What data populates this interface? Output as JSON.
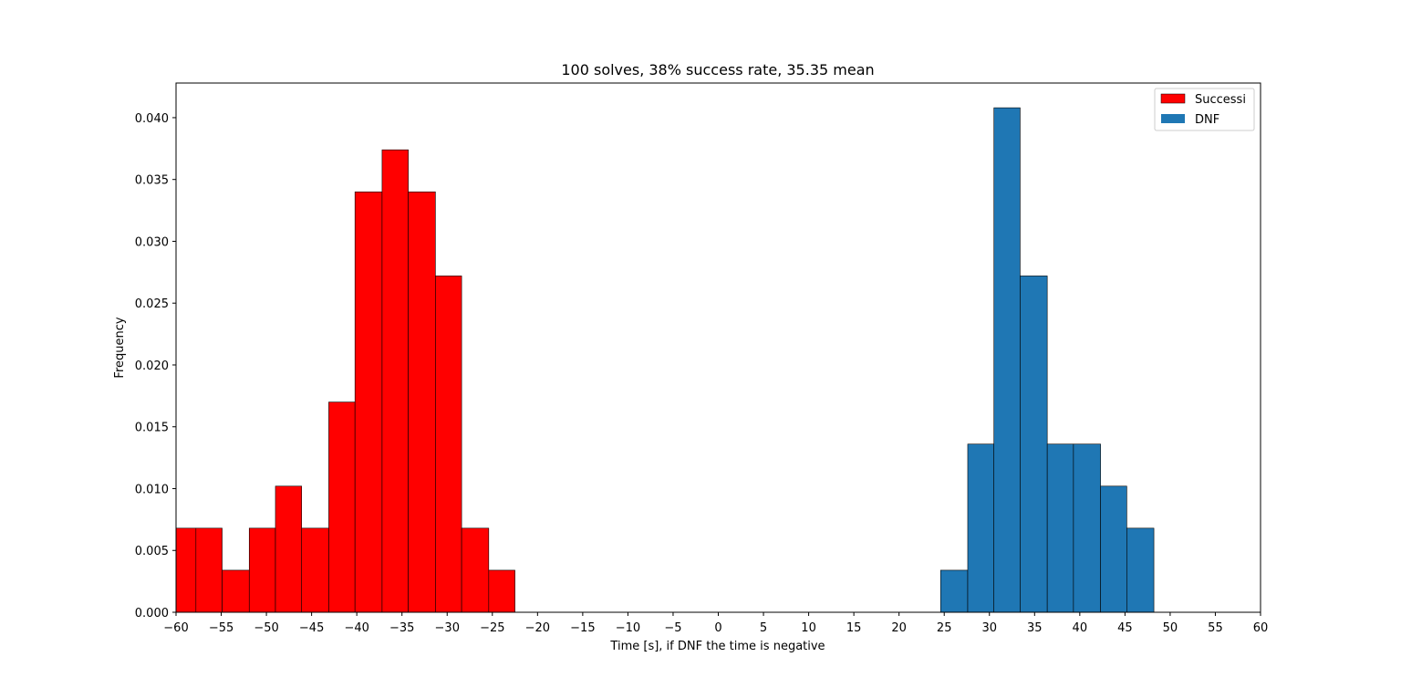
{
  "chart_data": {
    "type": "bar",
    "title": "100 solves, 38% success rate, 35.35 mean",
    "xlabel": "Time [s], if DNF the time is negative",
    "ylabel": "Frequency",
    "xlim": [
      -60,
      60
    ],
    "ylim": [
      0,
      0.0428
    ],
    "x_ticks": [
      -60,
      -55,
      -50,
      -45,
      -40,
      -35,
      -30,
      -25,
      -20,
      -15,
      -10,
      -5,
      0,
      5,
      10,
      15,
      20,
      25,
      30,
      35,
      40,
      45,
      50,
      55,
      60
    ],
    "y_ticks": [
      0.0,
      0.005,
      0.01,
      0.015,
      0.02,
      0.025,
      0.03,
      0.035,
      0.04
    ],
    "y_tick_labels": [
      "0.000",
      "0.005",
      "0.010",
      "0.015",
      "0.020",
      "0.025",
      "0.030",
      "0.035",
      "0.040"
    ],
    "grid": false,
    "legend_position": "top-right",
    "series": [
      {
        "name": "Successi",
        "color": "#ff0000",
        "bins": [
          {
            "x0": -60.0,
            "x1": -57.8,
            "value": 0.0068
          },
          {
            "x0": -57.8,
            "x1": -54.9,
            "value": 0.0068
          },
          {
            "x0": -54.9,
            "x1": -51.9,
            "value": 0.0034
          },
          {
            "x0": -51.9,
            "x1": -49.0,
            "value": 0.0068
          },
          {
            "x0": -49.0,
            "x1": -46.1,
            "value": 0.0102
          },
          {
            "x0": -46.1,
            "x1": -43.1,
            "value": 0.0068
          },
          {
            "x0": -43.1,
            "x1": -40.2,
            "value": 0.017
          },
          {
            "x0": -40.2,
            "x1": -37.2,
            "value": 0.034
          },
          {
            "x0": -37.2,
            "x1": -34.3,
            "value": 0.0374
          },
          {
            "x0": -34.3,
            "x1": -31.3,
            "value": 0.034
          },
          {
            "x0": -31.3,
            "x1": -28.4,
            "value": 0.0272
          },
          {
            "x0": -28.4,
            "x1": -25.4,
            "value": 0.0068
          },
          {
            "x0": -25.4,
            "x1": -22.5,
            "value": 0.0034
          }
        ]
      },
      {
        "name": "DNF",
        "color": "#1f77b4",
        "bins": [
          {
            "x0": 24.6,
            "x1": 27.6,
            "value": 0.0034
          },
          {
            "x0": 27.6,
            "x1": 30.5,
            "value": 0.0136
          },
          {
            "x0": 30.5,
            "x1": 33.4,
            "value": 0.0408
          },
          {
            "x0": 33.4,
            "x1": 36.4,
            "value": 0.0272
          },
          {
            "x0": 36.4,
            "x1": 39.3,
            "value": 0.0136
          },
          {
            "x0": 39.3,
            "x1": 42.3,
            "value": 0.0136
          },
          {
            "x0": 42.3,
            "x1": 45.2,
            "value": 0.0102
          },
          {
            "x0": 45.2,
            "x1": 48.2,
            "value": 0.0068
          }
        ]
      }
    ]
  }
}
